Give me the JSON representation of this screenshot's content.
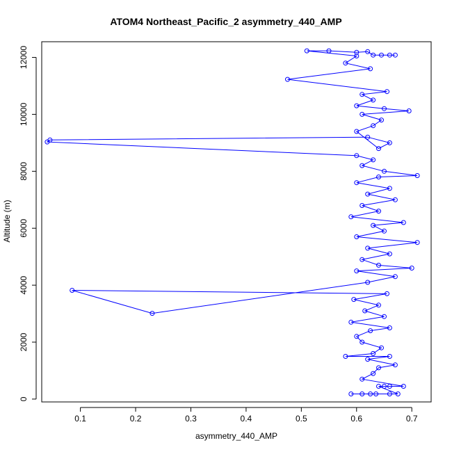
{
  "chart_data": {
    "type": "scatter",
    "title": "ATOM4 Northeast_Pacific_2 asymmetry_440_AMP",
    "xlabel": "asymmetry_440_AMP",
    "ylabel": "Altitude (m)",
    "xlim": [
      0.03,
      0.735
    ],
    "ylim": [
      -100,
      12550
    ],
    "x_ticks": [
      0.1,
      0.2,
      0.3,
      0.4,
      0.5,
      0.6,
      0.7
    ],
    "y_ticks": [
      0,
      2000,
      4000,
      6000,
      8000,
      10000,
      12000
    ],
    "grid": false,
    "legend": "none",
    "color": "#0000ff",
    "marker": "open-circle",
    "connected": true,
    "series": [
      {
        "points": [
          [
            0.59,
            180
          ],
          [
            0.61,
            180
          ],
          [
            0.625,
            180
          ],
          [
            0.635,
            180
          ],
          [
            0.66,
            180
          ],
          [
            0.675,
            180
          ],
          [
            0.64,
            450
          ],
          [
            0.65,
            450
          ],
          [
            0.66,
            450
          ],
          [
            0.685,
            450
          ],
          [
            0.61,
            700
          ],
          [
            0.63,
            900
          ],
          [
            0.64,
            1100
          ],
          [
            0.67,
            1200
          ],
          [
            0.62,
            1400
          ],
          [
            0.66,
            1500
          ],
          [
            0.58,
            1500
          ],
          [
            0.63,
            1600
          ],
          [
            0.645,
            1800
          ],
          [
            0.61,
            2000
          ],
          [
            0.6,
            2200
          ],
          [
            0.625,
            2400
          ],
          [
            0.66,
            2500
          ],
          [
            0.59,
            2700
          ],
          [
            0.65,
            2900
          ],
          [
            0.615,
            3100
          ],
          [
            0.64,
            3300
          ],
          [
            0.595,
            3500
          ],
          [
            0.655,
            3700
          ],
          [
            0.085,
            3820
          ],
          [
            0.23,
            3010
          ],
          [
            0.62,
            4100
          ],
          [
            0.67,
            4300
          ],
          [
            0.6,
            4500
          ],
          [
            0.7,
            4600
          ],
          [
            0.64,
            4700
          ],
          [
            0.61,
            4900
          ],
          [
            0.66,
            5100
          ],
          [
            0.62,
            5300
          ],
          [
            0.71,
            5500
          ],
          [
            0.6,
            5700
          ],
          [
            0.65,
            5900
          ],
          [
            0.63,
            6100
          ],
          [
            0.685,
            6200
          ],
          [
            0.59,
            6400
          ],
          [
            0.64,
            6600
          ],
          [
            0.61,
            6800
          ],
          [
            0.67,
            7000
          ],
          [
            0.62,
            7200
          ],
          [
            0.66,
            7400
          ],
          [
            0.6,
            7600
          ],
          [
            0.64,
            7800
          ],
          [
            0.71,
            7850
          ],
          [
            0.65,
            8000
          ],
          [
            0.61,
            8200
          ],
          [
            0.63,
            8400
          ],
          [
            0.6,
            8550
          ],
          [
            0.04,
            9030
          ],
          [
            0.045,
            9100
          ],
          [
            0.62,
            9200
          ],
          [
            0.66,
            9000
          ],
          [
            0.64,
            8800
          ],
          [
            0.6,
            9400
          ],
          [
            0.63,
            9600
          ],
          [
            0.645,
            9800
          ],
          [
            0.61,
            10000
          ],
          [
            0.695,
            10120
          ],
          [
            0.65,
            10200
          ],
          [
            0.6,
            10300
          ],
          [
            0.63,
            10500
          ],
          [
            0.61,
            10700
          ],
          [
            0.655,
            10800
          ],
          [
            0.475,
            11230
          ],
          [
            0.625,
            11600
          ],
          [
            0.58,
            11800
          ],
          [
            0.6,
            12050
          ],
          [
            0.51,
            12230
          ],
          [
            0.55,
            12230
          ],
          [
            0.6,
            12180
          ],
          [
            0.62,
            12200
          ],
          [
            0.63,
            12080
          ],
          [
            0.645,
            12080
          ],
          [
            0.66,
            12080
          ],
          [
            0.67,
            12080
          ]
        ]
      }
    ]
  }
}
